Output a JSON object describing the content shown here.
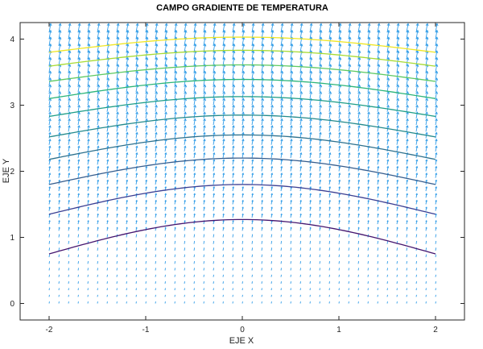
{
  "chart_data": {
    "type": "quiver-contour",
    "title": "CAMPO GRADIENTE DE TEMPERATURA",
    "xlabel": "EJE X",
    "ylabel": "EJE Y",
    "xlim": [
      -2.3,
      2.3
    ],
    "ylim": [
      -0.25,
      4.25
    ],
    "xticks": [
      -2,
      -1,
      0,
      1,
      2
    ],
    "yticks": [
      0,
      1,
      2,
      3,
      4
    ],
    "grid": false,
    "quiver": {
      "x_range": [
        -2,
        2
      ],
      "y_range": [
        0,
        4.1
      ],
      "nx": 41,
      "ny": 42,
      "color": "#2f9ce8",
      "arrow_direction": "mostly up, slight tilt toward right"
    },
    "contours": {
      "x_range": [
        -2,
        2
      ],
      "lines": [
        {
          "y_at_center": 1.27,
          "y_at_edges": 0.75,
          "color": "#45166f"
        },
        {
          "y_at_center": 1.8,
          "y_at_edges": 1.35,
          "color": "#3b3f93"
        },
        {
          "y_at_center": 2.2,
          "y_at_edges": 1.8,
          "color": "#355d8e"
        },
        {
          "y_at_center": 2.55,
          "y_at_edges": 2.18,
          "color": "#2d718e"
        },
        {
          "y_at_center": 2.85,
          "y_at_edges": 2.52,
          "color": "#238a8d"
        },
        {
          "y_at_center": 3.13,
          "y_at_edges": 2.83,
          "color": "#1f9e89"
        },
        {
          "y_at_center": 3.39,
          "y_at_edges": 3.1,
          "color": "#2db57a"
        },
        {
          "y_at_center": 3.61,
          "y_at_edges": 3.36,
          "color": "#5ec962"
        },
        {
          "y_at_center": 3.83,
          "y_at_edges": 3.59,
          "color": "#a8db34"
        },
        {
          "y_at_center": 4.03,
          "y_at_edges": 3.8,
          "color": "#f0e625"
        }
      ]
    }
  }
}
